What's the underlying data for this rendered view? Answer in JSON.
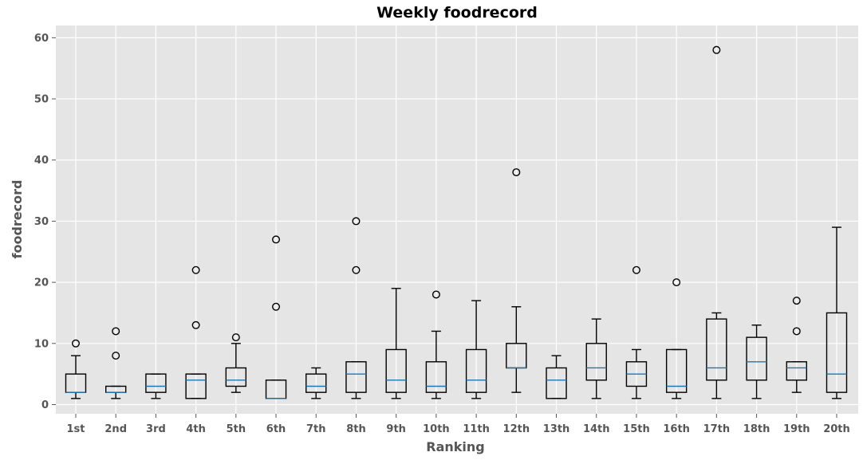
{
  "chart_data": {
    "type": "box",
    "title": "Weekly foodrecord",
    "xlabel": "Ranking",
    "ylabel": "foodrecord",
    "ylim": [
      -1.5,
      62
    ],
    "yticks": [
      0,
      10,
      20,
      30,
      40,
      50,
      60
    ],
    "grid": true,
    "background": "#e5e5e5",
    "grid_color": "#ffffff",
    "box_color": "#000000",
    "median_color": "#1f77b4",
    "categories": [
      "1st",
      "2nd",
      "3rd",
      "4th",
      "5th",
      "6th",
      "7th",
      "8th",
      "9th",
      "10th",
      "11th",
      "12th",
      "13th",
      "14th",
      "15th",
      "16th",
      "17th",
      "18th",
      "19th",
      "20th"
    ],
    "boxes": [
      {
        "whislo": 1,
        "q1": 2,
        "med": 2,
        "q3": 5,
        "whishi": 8,
        "fliers": [
          10
        ]
      },
      {
        "whislo": 1,
        "q1": 2,
        "med": 2,
        "q3": 3,
        "whishi": 3,
        "fliers": [
          8,
          12
        ]
      },
      {
        "whislo": 1,
        "q1": 2,
        "med": 3,
        "q3": 5,
        "whishi": 5,
        "fliers": []
      },
      {
        "whislo": 1,
        "q1": 1,
        "med": 4,
        "q3": 5,
        "whishi": 5,
        "fliers": [
          13,
          22
        ]
      },
      {
        "whislo": 2,
        "q1": 3,
        "med": 4,
        "q3": 6,
        "whishi": 10,
        "fliers": [
          11
        ]
      },
      {
        "whislo": 1,
        "q1": 1,
        "med": 1,
        "q3": 4,
        "whishi": 4,
        "fliers": [
          16,
          27
        ]
      },
      {
        "whislo": 1,
        "q1": 2,
        "med": 3,
        "q3": 5,
        "whishi": 6,
        "fliers": []
      },
      {
        "whislo": 1,
        "q1": 2,
        "med": 5,
        "q3": 7,
        "whishi": 7,
        "fliers": [
          22,
          30
        ]
      },
      {
        "whislo": 1,
        "q1": 2,
        "med": 4,
        "q3": 9,
        "whishi": 19,
        "fliers": []
      },
      {
        "whislo": 1,
        "q1": 2,
        "med": 3,
        "q3": 7,
        "whishi": 12,
        "fliers": [
          18
        ]
      },
      {
        "whislo": 1,
        "q1": 2,
        "med": 4,
        "q3": 9,
        "whishi": 17,
        "fliers": []
      },
      {
        "whislo": 2,
        "q1": 6,
        "med": 6,
        "q3": 10,
        "whishi": 16,
        "fliers": [
          38
        ]
      },
      {
        "whislo": 1,
        "q1": 1,
        "med": 4,
        "q3": 6,
        "whishi": 8,
        "fliers": []
      },
      {
        "whislo": 1,
        "q1": 4,
        "med": 6,
        "q3": 10,
        "whishi": 14,
        "fliers": []
      },
      {
        "whislo": 1,
        "q1": 3,
        "med": 5,
        "q3": 7,
        "whishi": 9,
        "fliers": [
          22
        ]
      },
      {
        "whislo": 1,
        "q1": 2,
        "med": 3,
        "q3": 9,
        "whishi": 9,
        "fliers": [
          20
        ]
      },
      {
        "whislo": 1,
        "q1": 4,
        "med": 6,
        "q3": 14,
        "whishi": 15,
        "fliers": [
          58
        ]
      },
      {
        "whislo": 1,
        "q1": 4,
        "med": 7,
        "q3": 11,
        "whishi": 13,
        "fliers": []
      },
      {
        "whislo": 2,
        "q1": 4,
        "med": 6,
        "q3": 7,
        "whishi": 7,
        "fliers": [
          12,
          17
        ]
      },
      {
        "whislo": 1,
        "q1": 2,
        "med": 5,
        "q3": 15,
        "whishi": 29,
        "fliers": []
      }
    ]
  }
}
